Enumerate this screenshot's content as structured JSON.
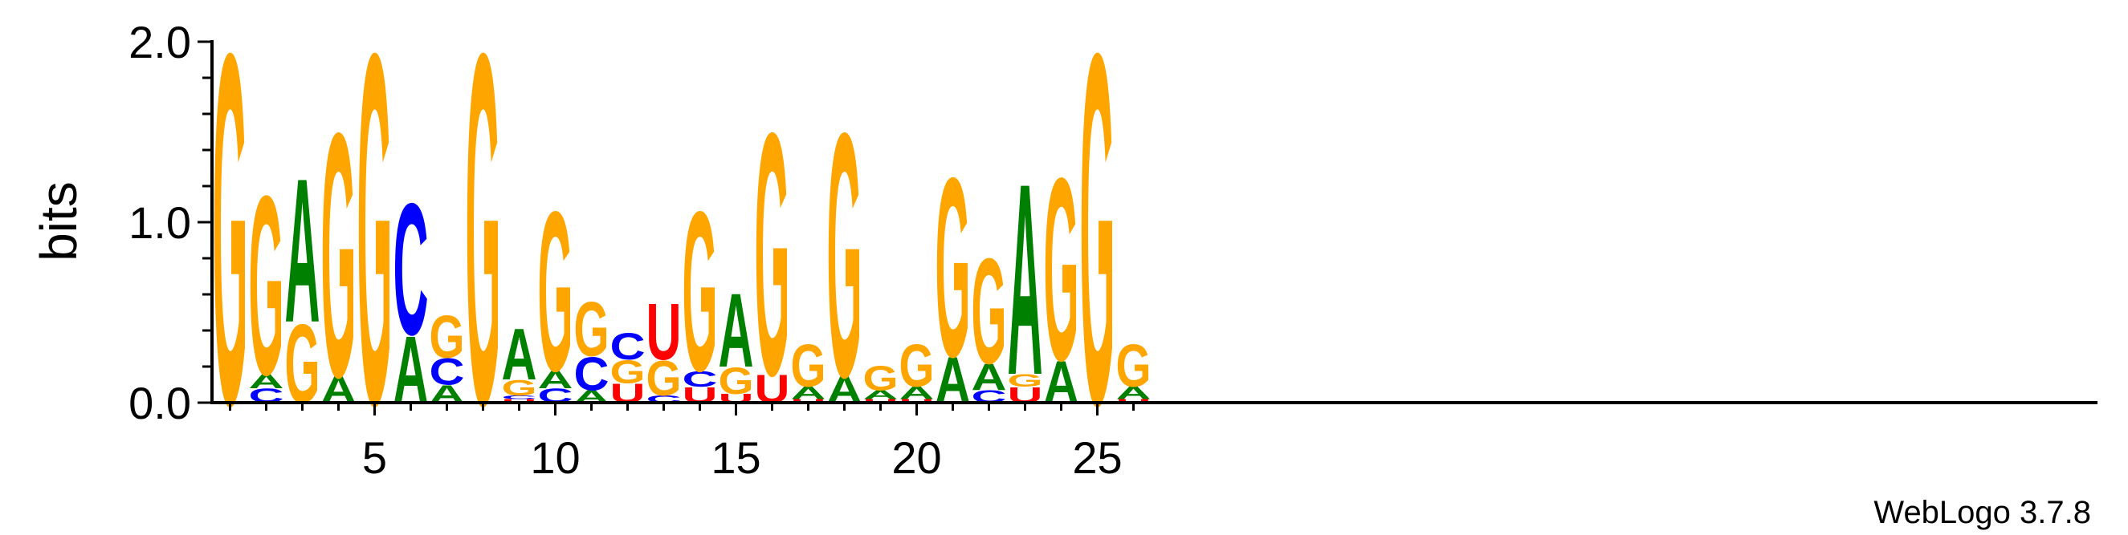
{
  "chart_data": {
    "type": "sequence-logo",
    "ylabel": "bits",
    "ylim": [
      0,
      2
    ],
    "y_ticks": [
      "0.0",
      "1.0",
      "2.0"
    ],
    "x_ticks": [
      "5",
      "10",
      "15",
      "20",
      "25"
    ],
    "credit": "WebLogo 3.7.8",
    "colors": {
      "A": "#008000",
      "C": "#0000ff",
      "G": "#ffa500",
      "U": "#ff0000"
    },
    "positions": [
      {
        "pos": 1,
        "letters": [
          {
            "l": "G",
            "h": 2.0
          }
        ]
      },
      {
        "pos": 2,
        "letters": [
          {
            "l": "C",
            "h": 0.08
          },
          {
            "l": "A",
            "h": 0.08
          },
          {
            "l": "G",
            "h": 1.02
          }
        ]
      },
      {
        "pos": 3,
        "letters": [
          {
            "l": "G",
            "h": 0.45
          },
          {
            "l": "A",
            "h": 0.82
          }
        ]
      },
      {
        "pos": 4,
        "letters": [
          {
            "l": "A",
            "h": 0.15
          },
          {
            "l": "G",
            "h": 1.39
          }
        ]
      },
      {
        "pos": 5,
        "letters": [
          {
            "l": "G",
            "h": 2.0
          }
        ]
      },
      {
        "pos": 6,
        "letters": [
          {
            "l": "A",
            "h": 0.38
          },
          {
            "l": "C",
            "h": 0.75
          }
        ]
      },
      {
        "pos": 7,
        "letters": [
          {
            "l": "A",
            "h": 0.1
          },
          {
            "l": "C",
            "h": 0.15
          },
          {
            "l": "G",
            "h": 0.24
          }
        ]
      },
      {
        "pos": 8,
        "letters": [
          {
            "l": "G",
            "h": 2.0
          }
        ]
      },
      {
        "pos": 9,
        "letters": [
          {
            "l": "U",
            "h": 0.02
          },
          {
            "l": "C",
            "h": 0.02
          },
          {
            "l": "G",
            "h": 0.09
          },
          {
            "l": "A",
            "h": 0.29
          }
        ]
      },
      {
        "pos": 10,
        "letters": [
          {
            "l": "C",
            "h": 0.08
          },
          {
            "l": "A",
            "h": 0.1
          },
          {
            "l": "G",
            "h": 0.91
          }
        ]
      },
      {
        "pos": 11,
        "letters": [
          {
            "l": "A",
            "h": 0.07
          },
          {
            "l": "C",
            "h": 0.19
          },
          {
            "l": "G",
            "h": 0.31
          }
        ]
      },
      {
        "pos": 12,
        "letters": [
          {
            "l": "U",
            "h": 0.11
          },
          {
            "l": "G",
            "h": 0.13
          },
          {
            "l": "C",
            "h": 0.15
          }
        ]
      },
      {
        "pos": 13,
        "letters": [
          {
            "l": "C",
            "h": 0.04
          },
          {
            "l": "G",
            "h": 0.2
          },
          {
            "l": "U",
            "h": 0.32
          }
        ]
      },
      {
        "pos": 14,
        "letters": [
          {
            "l": "U",
            "h": 0.09
          },
          {
            "l": "C",
            "h": 0.09
          },
          {
            "l": "G",
            "h": 0.91
          }
        ]
      },
      {
        "pos": 15,
        "letters": [
          {
            "l": "U",
            "h": 0.05
          },
          {
            "l": "G",
            "h": 0.15
          },
          {
            "l": "A",
            "h": 0.42
          }
        ]
      },
      {
        "pos": 16,
        "letters": [
          {
            "l": "U",
            "h": 0.16
          },
          {
            "l": "G",
            "h": 1.38
          }
        ]
      },
      {
        "pos": 17,
        "letters": [
          {
            "l": "U",
            "h": 0.02
          },
          {
            "l": "A",
            "h": 0.07
          },
          {
            "l": "G",
            "h": 0.24
          }
        ]
      },
      {
        "pos": 18,
        "letters": [
          {
            "l": "A",
            "h": 0.15
          },
          {
            "l": "G",
            "h": 1.39
          }
        ]
      },
      {
        "pos": 19,
        "letters": [
          {
            "l": "U",
            "h": 0.02
          },
          {
            "l": "A",
            "h": 0.05
          },
          {
            "l": "G",
            "h": 0.14
          }
        ]
      },
      {
        "pos": 20,
        "letters": [
          {
            "l": "U",
            "h": 0.02
          },
          {
            "l": "A",
            "h": 0.07
          },
          {
            "l": "G",
            "h": 0.24
          }
        ]
      },
      {
        "pos": 21,
        "letters": [
          {
            "l": "A",
            "h": 0.26
          },
          {
            "l": "G",
            "h": 1.02
          }
        ]
      },
      {
        "pos": 22,
        "letters": [
          {
            "l": "C",
            "h": 0.07
          },
          {
            "l": "A",
            "h": 0.15
          },
          {
            "l": "G",
            "h": 0.6
          }
        ]
      },
      {
        "pos": 23,
        "letters": [
          {
            "l": "U",
            "h": 0.09
          },
          {
            "l": "G",
            "h": 0.07
          },
          {
            "l": "A",
            "h": 1.09
          }
        ]
      },
      {
        "pos": 24,
        "letters": [
          {
            "l": "A",
            "h": 0.24
          },
          {
            "l": "G",
            "h": 1.04
          }
        ]
      },
      {
        "pos": 25,
        "letters": [
          {
            "l": "G",
            "h": 2.0
          }
        ]
      },
      {
        "pos": 26,
        "letters": [
          {
            "l": "U",
            "h": 0.02
          },
          {
            "l": "A",
            "h": 0.07
          },
          {
            "l": "G",
            "h": 0.24
          }
        ]
      }
    ]
  }
}
